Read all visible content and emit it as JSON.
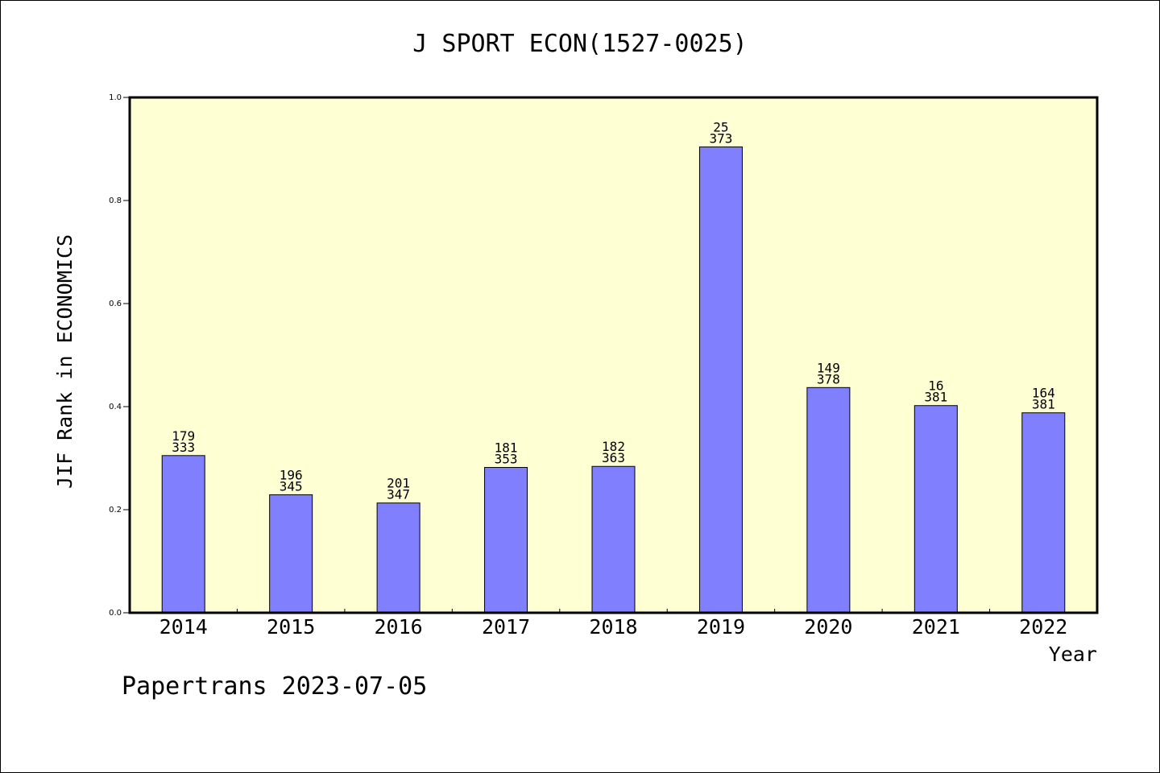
{
  "chart_data": {
    "type": "bar",
    "title": "J SPORT ECON(1527-0025)",
    "xlabel": "Year",
    "ylabel": "JIF Rank in ECONOMICS",
    "ylim": [
      0,
      1.0
    ],
    "yticks": [
      "0.0",
      "0.2",
      "0.4",
      "0.6",
      "0.8",
      "1.0"
    ],
    "categories": [
      "2014",
      "2015",
      "2016",
      "2017",
      "2018",
      "2019",
      "2020",
      "2021",
      "2022"
    ],
    "values": [
      0.305,
      0.229,
      0.213,
      0.282,
      0.284,
      0.904,
      0.437,
      0.402,
      0.388
    ],
    "rank_labels": [
      {
        "rank": "179",
        "total": "333"
      },
      {
        "rank": "196",
        "total": "345"
      },
      {
        "rank": "201",
        "total": "347"
      },
      {
        "rank": "181",
        "total": "353"
      },
      {
        "rank": "182",
        "total": "363"
      },
      {
        "rank": "25",
        "total": "373"
      },
      {
        "rank": "149",
        "total": "378"
      },
      {
        "rank": "16",
        "total": "381"
      },
      {
        "rank": "164",
        "total": "381"
      }
    ],
    "grid": false,
    "colors": {
      "plot_background": "#ffffd4",
      "bar_fill": "#8080ff",
      "bar_stroke": "#000000"
    }
  },
  "footer": "Papertrans 2023-07-05"
}
